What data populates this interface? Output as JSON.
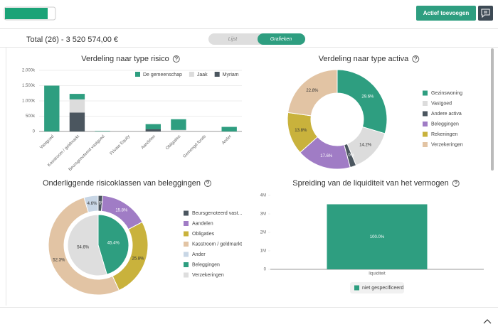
{
  "header": {
    "button": "Actief toevoegen"
  },
  "summary": {
    "total": "Total  (26) - 3 520 574,00 €",
    "views": [
      "Lijst",
      "Grafieken"
    ]
  },
  "chart_data": [
    {
      "type": "stacked_bar",
      "title": "Verdeling naar type risico",
      "categories": [
        "Vastgoed",
        "Kasstroom / geldmarkt",
        "Beursgenoteerd vastgoed",
        "Private Equity",
        "Aandelen",
        "Obligaties",
        "Gemengd fonds",
        "Ander"
      ],
      "series": [
        {
          "name": "De gemeenschap",
          "color": "#2e9e80",
          "values": [
            1500000,
            180000,
            15000,
            0,
            170000,
            350000,
            0,
            150000
          ]
        },
        {
          "name": "Jaak",
          "color": "#dcdcdc",
          "values": [
            0,
            430000,
            0,
            0,
            0,
            50000,
            0,
            0
          ]
        },
        {
          "name": "Myriam",
          "color": "#4b565f",
          "values": [
            0,
            620000,
            0,
            0,
            70000,
            0,
            0,
            0
          ]
        }
      ],
      "ylim": [
        0,
        2000000
      ],
      "yticks": [
        0,
        {
          "value": 500000,
          "label": "500k"
        },
        {
          "value": 1000000,
          "label": "1.000k"
        },
        {
          "value": 1500000,
          "label": "1.500k"
        },
        {
          "value": 2000000,
          "label": "2.000k"
        }
      ],
      "grid": true,
      "legend": "top-right"
    },
    {
      "type": "donut",
      "title": "Verdeling naar type activa",
      "categories": [
        "Gezinswoning",
        "Vastgoed",
        "Andere activa",
        "Beleggingen",
        "Rekeningen",
        "Verzekeringen"
      ],
      "values": [
        29.6,
        14.2,
        2.0,
        17.6,
        13.8,
        22.8
      ],
      "value_labels": [
        "29.6%",
        "14.2%",
        "2.0%",
        "17.6%",
        "13.8%",
        "22.8%"
      ],
      "colors": [
        "#2e9e80",
        "#dcdcdc",
        "#4b565f",
        "#a07cc5",
        "#c9b23c",
        "#e2c4a4"
      ],
      "legend": "right"
    },
    {
      "type": "nested_donut",
      "title": "Onderliggende risicoklassen van beleggingen",
      "rings": [
        {
          "categories": [
            "Beursgenoteerd vast...",
            "Aandelen",
            "Obligaties",
            "Kasstroom / geldmarkt",
            "Ander"
          ],
          "values": [
            1.5,
            15.8,
            25.8,
            52.3,
            4.6
          ],
          "value_labels": [
            "1.5%",
            "15.8%",
            "25.8%",
            "52.3%",
            "4.6%"
          ],
          "colors": [
            "#4b565f",
            "#a07cc5",
            "#c9b23c",
            "#e2c4a4",
            "#c8d6e5"
          ]
        },
        {
          "categories": [
            "Beleggingen",
            "Verzekeringen"
          ],
          "values": [
            45.4,
            54.6
          ],
          "value_labels": [
            "45.4%",
            "54.6%"
          ],
          "colors": [
            "#2e9e80",
            "#dedede"
          ]
        }
      ],
      "legend": "right"
    },
    {
      "type": "bar",
      "title": "Spreiding van de liquiditeit van het vermogen",
      "categories": [
        "liquiditeit"
      ],
      "series": [
        {
          "name": "niet gespecificeerd",
          "color": "#2e9e80",
          "values": [
            3520574
          ],
          "share_labels": [
            "100.0%"
          ]
        }
      ],
      "ylim": [
        0,
        4000000
      ],
      "yticks": [
        0,
        {
          "value": 1000000,
          "label": "1M"
        },
        {
          "value": 2000000,
          "label": "2M"
        },
        {
          "value": 3000000,
          "label": "3M"
        },
        {
          "value": 4000000,
          "label": "4M"
        }
      ],
      "legend": "bottom"
    }
  ]
}
